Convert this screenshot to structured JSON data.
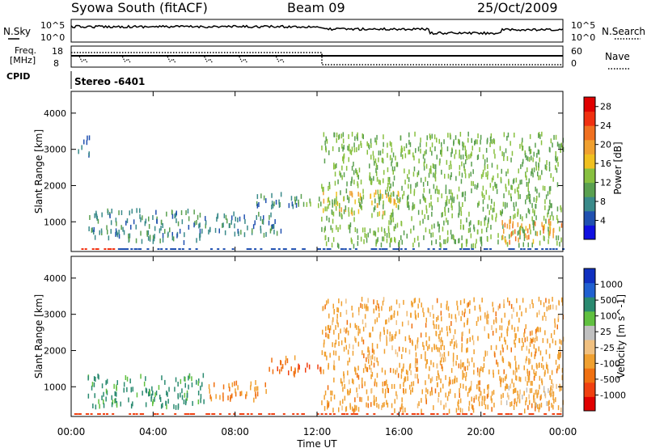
{
  "header": {
    "site": "Syowa South (fitACF)",
    "beam": "Beam 09",
    "date": "25/Oct/2009"
  },
  "stereo_label": "Stereo  -6401",
  "noise_panel": {
    "left_label": "N.Sky",
    "right_label": "N.Search",
    "left_ticks": [
      "10^5",
      "10^0"
    ],
    "right_ticks": [
      "10^5",
      "10^0"
    ]
  },
  "freq_panel": {
    "left_label_line1": "Freq.",
    "left_label_line2": "[MHz]",
    "cpid_label": "CPID",
    "right_label": "Nave",
    "left_ticks": [
      "18",
      "8"
    ],
    "right_ticks": [
      "60",
      "0"
    ]
  },
  "chart_data": [
    {
      "type": "heatmap",
      "title": "",
      "xlabel": "",
      "ylabel": "Slant Range [km]",
      "x_ticks": [
        "00:00",
        "04:00",
        "08:00",
        "12:00",
        "16:00",
        "20:00",
        "00:00"
      ],
      "y_ticks": [
        "1000",
        "2000",
        "3000",
        "4000"
      ],
      "ylim": [
        180,
        4600
      ],
      "xlim_hours": [
        0,
        24
      ],
      "colorbar": {
        "label": "Power [dB]",
        "ticks": [
          "4",
          "8",
          "12",
          "16",
          "20",
          "24",
          "28"
        ],
        "range": [
          0,
          30
        ],
        "colors": [
          "#1010e0",
          "#2050b0",
          "#3a8a8a",
          "#5aa050",
          "#88c040",
          "#f0c020",
          "#f0a030",
          "#f07020",
          "#f03010",
          "#e00000"
        ]
      },
      "regions": [
        {
          "t0": 0.3,
          "t1": 0.9,
          "r0": 2800,
          "r1": 3300,
          "value": 6
        },
        {
          "t0": 0.8,
          "t1": 6.5,
          "r0": 400,
          "r1": 1300,
          "value": 8
        },
        {
          "t0": 6.5,
          "t1": 10.5,
          "r0": 600,
          "r1": 1200,
          "value": 7
        },
        {
          "t0": 9.0,
          "t1": 11.0,
          "r0": 1300,
          "r1": 1800,
          "value": 8
        },
        {
          "t0": 11.0,
          "t1": 12.2,
          "r0": 1350,
          "r1": 1700,
          "value": 12
        },
        {
          "t0": 12.2,
          "t1": 16.0,
          "r0": 1200,
          "r1": 1800,
          "value": 17
        },
        {
          "t0": 12.2,
          "t1": 24.0,
          "r0": 300,
          "r1": 3400,
          "value": 12
        },
        {
          "t0": 21.0,
          "t1": 24.0,
          "r0": 400,
          "r1": 1000,
          "value": 20
        }
      ]
    },
    {
      "type": "heatmap",
      "title": "",
      "xlabel": "Time UT",
      "ylabel": "Slant Range [km]",
      "x_ticks": [
        "00:00",
        "04:00",
        "08:00",
        "12:00",
        "16:00",
        "20:00",
        "00:00"
      ],
      "y_ticks": [
        "1000",
        "2000",
        "3000",
        "4000"
      ],
      "ylim": [
        180,
        4600
      ],
      "xlim_hours": [
        0,
        24
      ],
      "colorbar": {
        "label": "Velocity [m s^-1]",
        "ticks": [
          "1000",
          "500",
          "100",
          "25",
          "-25",
          "-100",
          "-500",
          "-1000"
        ],
        "range": [
          -1200,
          1200
        ],
        "colors": [
          "#1030c0",
          "#2060d0",
          "#2a8a70",
          "#60c040",
          "#c0c0c0",
          "#f0c080",
          "#f0a030",
          "#f07010",
          "#f04010",
          "#e00000"
        ]
      },
      "regions": [
        {
          "t0": 0.8,
          "t1": 6.5,
          "r0": 400,
          "r1": 1300,
          "value": 150
        },
        {
          "t0": 6.5,
          "t1": 9.5,
          "r0": 600,
          "r1": 1100,
          "value": -300
        },
        {
          "t0": 9.5,
          "t1": 11.0,
          "r0": 1300,
          "r1": 1800,
          "value": -400
        },
        {
          "t0": 11.0,
          "t1": 12.2,
          "r0": 1350,
          "r1": 1700,
          "value": -500
        },
        {
          "t0": 12.2,
          "t1": 24.0,
          "r0": 300,
          "r1": 3400,
          "value": -200
        },
        {
          "t0": 21.0,
          "t1": 24.0,
          "r0": 400,
          "r1": 1000,
          "value": -100
        }
      ]
    }
  ]
}
